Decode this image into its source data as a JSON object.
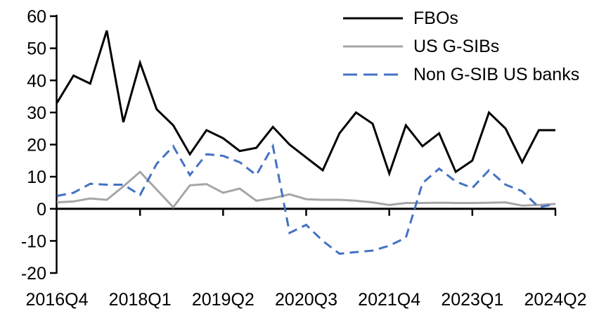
{
  "chart_data": {
    "type": "line",
    "title": "",
    "xlabel": "",
    "ylabel": "",
    "grid": false,
    "legend_position": "top-right",
    "background": "#ffffff",
    "axis_color": "#000000",
    "ylim": [
      -20,
      60
    ],
    "yticks": [
      60,
      50,
      40,
      30,
      20,
      10,
      0,
      -10,
      -20
    ],
    "xticks": [
      {
        "index": 0,
        "label": "2016Q4"
      },
      {
        "index": 5,
        "label": "2018Q1"
      },
      {
        "index": 10,
        "label": "2019Q2"
      },
      {
        "index": 15,
        "label": "2020Q3"
      },
      {
        "index": 20,
        "label": "2021Q4"
      },
      {
        "index": 25,
        "label": "2023Q1"
      },
      {
        "index": 30,
        "label": "2024Q2"
      }
    ],
    "categories": [
      "2016Q4",
      "2017Q1",
      "2017Q2",
      "2017Q3",
      "2017Q4",
      "2018Q1",
      "2018Q2",
      "2018Q3",
      "2018Q4",
      "2019Q1",
      "2019Q2",
      "2019Q3",
      "2019Q4",
      "2020Q1",
      "2020Q2",
      "2020Q3",
      "2020Q4",
      "2021Q1",
      "2021Q2",
      "2021Q3",
      "2021Q4",
      "2022Q1",
      "2022Q2",
      "2022Q3",
      "2022Q4",
      "2023Q1",
      "2023Q2",
      "2023Q3",
      "2023Q4",
      "2024Q1",
      "2024Q2"
    ],
    "series": [
      {
        "name": "FBOs",
        "color": "#000000",
        "style": "solid",
        "values": [
          33,
          41.5,
          39,
          55.5,
          27,
          45.5,
          31,
          26,
          17,
          24.5,
          22,
          18,
          19,
          25.5,
          20,
          16,
          12,
          23.5,
          30,
          26.5,
          11,
          26,
          19.5,
          23.5,
          11.5,
          15,
          30,
          25,
          14.5,
          24.5,
          24.5
        ]
      },
      {
        "name": "US G-SIBs",
        "color": "#A6A6A6",
        "style": "solid",
        "values": [
          2,
          2.3,
          3.2,
          2.8,
          7,
          11.5,
          6,
          0.5,
          7.3,
          7.7,
          5,
          6.3,
          2.5,
          3.3,
          4.5,
          3,
          2.8,
          2.8,
          2.5,
          2,
          1.2,
          1.8,
          1.8,
          1.9,
          1.8,
          1.8,
          1.9,
          2,
          1,
          1.2,
          1.5
        ]
      },
      {
        "name": "Non G-SIB US banks",
        "color": "#4472C4",
        "style": "dashed",
        "dash": "13 8",
        "values": [
          4,
          5,
          7.8,
          7.5,
          7.5,
          4.3,
          14,
          19.5,
          10.5,
          17,
          16.5,
          14.5,
          10.5,
          19.5,
          -7.5,
          -5,
          -10,
          -14,
          -13.5,
          -13,
          -11.5,
          -9,
          8,
          12.5,
          8.5,
          6.5,
          12,
          7.5,
          5.5,
          0.5,
          1.5
        ]
      }
    ]
  }
}
